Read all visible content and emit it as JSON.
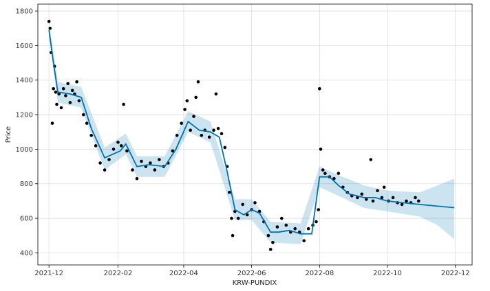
{
  "chart_data": {
    "type": "scatter",
    "title": "",
    "xlabel": "KRW-PUNDIX",
    "ylabel": "Price",
    "x_range": [
      "2021-11-21",
      "2022-12-16"
    ],
    "ylim": [
      330,
      1840
    ],
    "grid": true,
    "x_ticks": [
      "2021-12",
      "2022-02",
      "2022-04",
      "2022-06",
      "2022-08",
      "2022-10",
      "2022-12"
    ],
    "y_ticks": [
      400,
      600,
      800,
      1000,
      1200,
      1400,
      1600,
      1800
    ],
    "colors": {
      "observed": "#000000",
      "forecast": "#0072B2",
      "uncertainty": "#0072B2"
    },
    "series": [
      {
        "role": "observed",
        "marker": "dot",
        "points": [
          [
            "2021-12-01",
            1740
          ],
          [
            "2021-12-02",
            1700
          ],
          [
            "2021-12-03",
            1560
          ],
          [
            "2021-12-04",
            1150
          ],
          [
            "2021-12-05",
            1350
          ],
          [
            "2021-12-06",
            1480
          ],
          [
            "2021-12-07",
            1330
          ],
          [
            "2021-12-08",
            1260
          ],
          [
            "2021-12-10",
            1320
          ],
          [
            "2021-12-12",
            1240
          ],
          [
            "2021-12-14",
            1350
          ],
          [
            "2021-12-16",
            1310
          ],
          [
            "2021-12-18",
            1380
          ],
          [
            "2021-12-20",
            1270
          ],
          [
            "2021-12-22",
            1340
          ],
          [
            "2021-12-24",
            1320
          ],
          [
            "2021-12-26",
            1390
          ],
          [
            "2021-12-28",
            1280
          ],
          [
            "2022-01-01",
            1200
          ],
          [
            "2022-01-04",
            1150
          ],
          [
            "2022-01-08",
            1080
          ],
          [
            "2022-01-12",
            1020
          ],
          [
            "2022-01-16",
            920
          ],
          [
            "2022-01-20",
            880
          ],
          [
            "2022-01-24",
            940
          ],
          [
            "2022-01-28",
            1000
          ],
          [
            "2022-02-01",
            1040
          ],
          [
            "2022-02-04",
            1020
          ],
          [
            "2022-02-06",
            1260
          ],
          [
            "2022-02-09",
            990
          ],
          [
            "2022-02-14",
            880
          ],
          [
            "2022-02-18",
            830
          ],
          [
            "2022-02-22",
            930
          ],
          [
            "2022-02-26",
            900
          ],
          [
            "2022-03-02",
            920
          ],
          [
            "2022-03-06",
            880
          ],
          [
            "2022-03-10",
            940
          ],
          [
            "2022-03-14",
            900
          ],
          [
            "2022-03-18",
            920
          ],
          [
            "2022-03-22",
            990
          ],
          [
            "2022-03-26",
            1080
          ],
          [
            "2022-03-30",
            1150
          ],
          [
            "2022-04-02",
            1230
          ],
          [
            "2022-04-04",
            1280
          ],
          [
            "2022-04-07",
            1110
          ],
          [
            "2022-04-10",
            1190
          ],
          [
            "2022-04-12",
            1300
          ],
          [
            "2022-04-14",
            1390
          ],
          [
            "2022-04-17",
            1080
          ],
          [
            "2022-04-20",
            1110
          ],
          [
            "2022-04-24",
            1070
          ],
          [
            "2022-04-28",
            1110
          ],
          [
            "2022-04-30",
            1320
          ],
          [
            "2022-05-02",
            1120
          ],
          [
            "2022-05-05",
            1090
          ],
          [
            "2022-05-08",
            1010
          ],
          [
            "2022-05-10",
            900
          ],
          [
            "2022-05-12",
            750
          ],
          [
            "2022-05-14",
            600
          ],
          [
            "2022-05-15",
            500
          ],
          [
            "2022-05-17",
            640
          ],
          [
            "2022-05-20",
            600
          ],
          [
            "2022-05-24",
            680
          ],
          [
            "2022-05-28",
            620
          ],
          [
            "2022-06-01",
            650
          ],
          [
            "2022-06-04",
            690
          ],
          [
            "2022-06-08",
            640
          ],
          [
            "2022-06-12",
            580
          ],
          [
            "2022-06-16",
            500
          ],
          [
            "2022-06-18",
            420
          ],
          [
            "2022-06-20",
            460
          ],
          [
            "2022-06-24",
            550
          ],
          [
            "2022-06-28",
            600
          ],
          [
            "2022-07-02",
            560
          ],
          [
            "2022-07-06",
            520
          ],
          [
            "2022-07-10",
            540
          ],
          [
            "2022-07-14",
            520
          ],
          [
            "2022-07-18",
            470
          ],
          [
            "2022-07-22",
            540
          ],
          [
            "2022-07-26",
            560
          ],
          [
            "2022-07-29",
            580
          ],
          [
            "2022-07-31",
            650
          ],
          [
            "2022-08-01",
            1350
          ],
          [
            "2022-08-02",
            1000
          ],
          [
            "2022-08-04",
            880
          ],
          [
            "2022-08-06",
            860
          ],
          [
            "2022-08-10",
            840
          ],
          [
            "2022-08-14",
            830
          ],
          [
            "2022-08-18",
            860
          ],
          [
            "2022-08-22",
            780
          ],
          [
            "2022-08-26",
            750
          ],
          [
            "2022-08-30",
            730
          ],
          [
            "2022-09-04",
            720
          ],
          [
            "2022-09-08",
            740
          ],
          [
            "2022-09-12",
            710
          ],
          [
            "2022-09-16",
            940
          ],
          [
            "2022-09-18",
            700
          ],
          [
            "2022-09-22",
            760
          ],
          [
            "2022-09-26",
            720
          ],
          [
            "2022-09-28",
            780
          ],
          [
            "2022-10-02",
            700
          ],
          [
            "2022-10-06",
            720
          ],
          [
            "2022-10-10",
            690
          ],
          [
            "2022-10-14",
            680
          ],
          [
            "2022-10-18",
            700
          ],
          [
            "2022-10-22",
            690
          ],
          [
            "2022-10-26",
            720
          ],
          [
            "2022-10-29",
            700
          ]
        ]
      },
      {
        "role": "forecast",
        "marker": "line",
        "points": [
          [
            "2021-12-01",
            1690
          ],
          [
            "2021-12-05",
            1500
          ],
          [
            "2021-12-09",
            1330
          ],
          [
            "2021-12-20",
            1320
          ],
          [
            "2021-12-30",
            1300
          ],
          [
            "2022-01-08",
            1120
          ],
          [
            "2022-01-20",
            950
          ],
          [
            "2022-02-03",
            990
          ],
          [
            "2022-02-08",
            1030
          ],
          [
            "2022-02-18",
            900
          ],
          [
            "2022-03-01",
            910
          ],
          [
            "2022-03-15",
            900
          ],
          [
            "2022-03-25",
            1000
          ],
          [
            "2022-04-05",
            1160
          ],
          [
            "2022-04-15",
            1110
          ],
          [
            "2022-04-25",
            1100
          ],
          [
            "2022-05-03",
            1070
          ],
          [
            "2022-05-10",
            870
          ],
          [
            "2022-05-17",
            650
          ],
          [
            "2022-05-25",
            620
          ],
          [
            "2022-06-01",
            650
          ],
          [
            "2022-06-08",
            630
          ],
          [
            "2022-06-18",
            520
          ],
          [
            "2022-06-25",
            520
          ],
          [
            "2022-07-05",
            530
          ],
          [
            "2022-07-15",
            510
          ],
          [
            "2022-07-25",
            510
          ],
          [
            "2022-08-01",
            840
          ],
          [
            "2022-08-10",
            840
          ],
          [
            "2022-08-18",
            790
          ],
          [
            "2022-08-28",
            740
          ],
          [
            "2022-09-10",
            720
          ],
          [
            "2022-09-20",
            720
          ],
          [
            "2022-10-01",
            700
          ],
          [
            "2022-10-15",
            690
          ],
          [
            "2022-10-30",
            680
          ],
          [
            "2022-11-15",
            670
          ],
          [
            "2022-11-30",
            662
          ]
        ]
      },
      {
        "role": "uncertainty",
        "marker": "band",
        "points": [
          [
            "2021-12-01",
            1650,
            1730
          ],
          [
            "2021-12-09",
            1270,
            1390
          ],
          [
            "2021-12-30",
            1240,
            1360
          ],
          [
            "2022-01-20",
            880,
            1010
          ],
          [
            "2022-02-08",
            970,
            1090
          ],
          [
            "2022-02-18",
            840,
            960
          ],
          [
            "2022-03-15",
            840,
            960
          ],
          [
            "2022-04-05",
            1100,
            1220
          ],
          [
            "2022-04-25",
            1040,
            1160
          ],
          [
            "2022-05-17",
            590,
            710
          ],
          [
            "2022-06-01",
            590,
            710
          ],
          [
            "2022-06-18",
            460,
            580
          ],
          [
            "2022-07-15",
            450,
            570
          ],
          [
            "2022-08-01",
            780,
            900
          ],
          [
            "2022-08-18",
            730,
            850
          ],
          [
            "2022-09-10",
            660,
            790
          ],
          [
            "2022-10-01",
            640,
            760
          ],
          [
            "2022-10-30",
            610,
            750
          ],
          [
            "2022-11-15",
            560,
            790
          ],
          [
            "2022-11-30",
            480,
            830
          ]
        ]
      }
    ]
  }
}
